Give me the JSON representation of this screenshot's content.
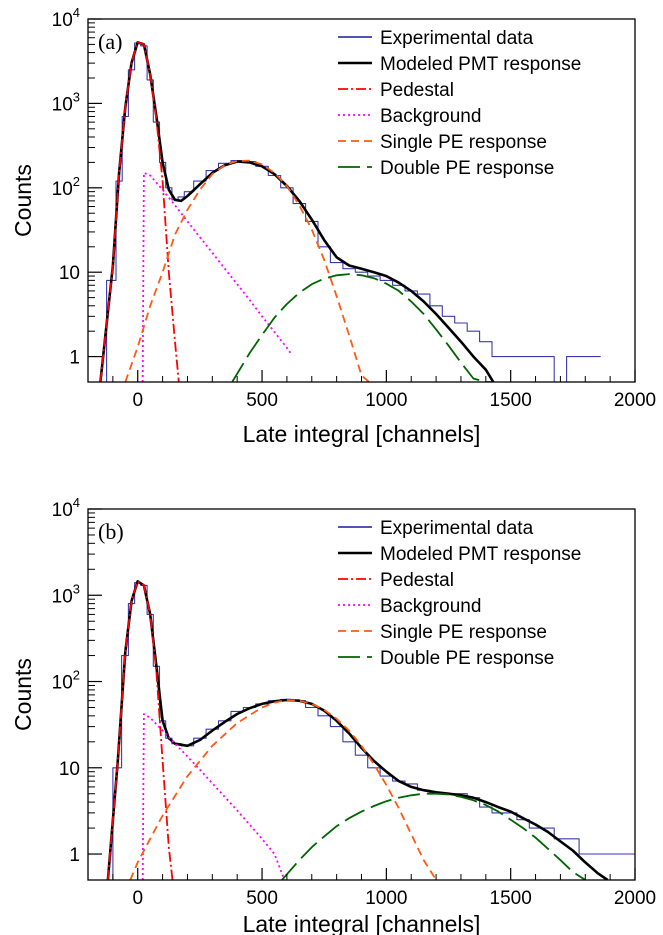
{
  "chart_data": [
    {
      "type": "line",
      "panel_label": "(a)",
      "xlabel": "Late integral [channels]",
      "ylabel": "Counts",
      "xlim": [
        -200,
        2000
      ],
      "ylim": [
        0.5,
        10000
      ],
      "yscale": "log",
      "grid": false,
      "legend_position": "top-right",
      "x_ticks": [
        0,
        500,
        1000,
        1500,
        2000
      ],
      "y_ticks": [
        {
          "value": 1,
          "label": "1"
        },
        {
          "value": 10,
          "label": "10"
        },
        {
          "value": 100,
          "label": "10",
          "exp": "2"
        },
        {
          "value": 1000,
          "label": "10",
          "exp": "3"
        },
        {
          "value": 10000,
          "label": "10",
          "exp": "4"
        }
      ],
      "series": [
        {
          "name": "Experimental data",
          "color": "#3a3ab0",
          "x": [
            -150,
            -100,
            -75,
            -50,
            -25,
            0,
            25,
            50,
            75,
            100,
            125,
            150,
            175,
            200,
            250,
            300,
            350,
            400,
            450,
            500,
            550,
            600,
            650,
            700,
            750,
            800,
            850,
            900,
            950,
            1000,
            1050,
            1100,
            1150,
            1200,
            1250,
            1300,
            1350,
            1400,
            1450,
            1500,
            1550,
            1600,
            1650,
            1700,
            1750,
            1800,
            1850
          ],
          "values": [
            0.5,
            8,
            120,
            700,
            2500,
            5200,
            4800,
            1900,
            600,
            200,
            100,
            72,
            78,
            90,
            120,
            160,
            195,
            210,
            205,
            180,
            140,
            100,
            65,
            40,
            20,
            13,
            11,
            10,
            9,
            8,
            7,
            6,
            5.5,
            4,
            3,
            2.5,
            2,
            1.5,
            1,
            1,
            1,
            1,
            1,
            0.5,
            1,
            1,
            1
          ]
        },
        {
          "name": "Modeled PMT response",
          "color": "#000000",
          "x": [
            -150,
            -100,
            -75,
            -50,
            -25,
            0,
            25,
            50,
            75,
            100,
            125,
            150,
            175,
            200,
            250,
            300,
            350,
            400,
            450,
            500,
            550,
            600,
            650,
            700,
            750,
            800,
            850,
            900,
            950,
            1000,
            1050,
            1100,
            1150,
            1200,
            1250,
            1300,
            1350,
            1400,
            1430
          ],
          "values": [
            0.5,
            12,
            150,
            900,
            3000,
            5300,
            5000,
            2200,
            700,
            200,
            95,
            72,
            70,
            80,
            110,
            150,
            185,
            205,
            200,
            180,
            145,
            105,
            70,
            42,
            24,
            15,
            12,
            11,
            10,
            9,
            7.5,
            6,
            4.5,
            3.2,
            2.2,
            1.5,
            1,
            0.7,
            0.5
          ]
        },
        {
          "name": "Pedestal",
          "color": "#ff0000",
          "dash": "10,3,2,3",
          "x": [
            -150,
            -100,
            -75,
            -50,
            -25,
            0,
            25,
            50,
            75,
            100,
            125,
            150,
            165
          ],
          "values": [
            0.5,
            12,
            150,
            900,
            3000,
            5300,
            5000,
            2200,
            650,
            120,
            10,
            1.5,
            0.5
          ]
        },
        {
          "name": "Background",
          "color": "#ff00ff",
          "dash": "2,3",
          "x": [
            20,
            25,
            50,
            100,
            150,
            200,
            250,
            300,
            350,
            400,
            450,
            500,
            550,
            600,
            615
          ],
          "values": [
            0.5,
            150,
            140,
            95,
            62,
            40,
            26,
            17,
            11,
            7.2,
            4.7,
            3.0,
            1.95,
            1.27,
            1.1
          ]
        },
        {
          "name": "Single PE response",
          "color": "#ff5a14",
          "dash": "8,5",
          "x": [
            -50,
            0,
            50,
            100,
            150,
            200,
            250,
            300,
            350,
            400,
            450,
            500,
            550,
            600,
            650,
            700,
            750,
            800,
            850,
            900,
            930
          ],
          "values": [
            0.5,
            1.3,
            4,
            10,
            28,
            55,
            95,
            145,
            185,
            208,
            210,
            190,
            150,
            105,
            62,
            32,
            14,
            5.2,
            1.8,
            0.6,
            0.5
          ]
        },
        {
          "name": "Double PE response",
          "color": "#006400",
          "dash": "22,7",
          "x": [
            380,
            450,
            500,
            550,
            600,
            650,
            700,
            750,
            800,
            850,
            900,
            950,
            1000,
            1050,
            1100,
            1150,
            1200,
            1250,
            1300,
            1350,
            1400,
            1420
          ],
          "values": [
            0.5,
            1.1,
            1.8,
            2.9,
            4.2,
            5.7,
            7.2,
            8.4,
            9.2,
            9.5,
            9.2,
            8.5,
            7.3,
            6.0,
            4.5,
            3.2,
            2.1,
            1.35,
            0.85,
            0.55,
            0.5,
            0.5
          ]
        }
      ]
    },
    {
      "type": "line",
      "panel_label": "(b)",
      "xlabel": "Late integral [channels]",
      "ylabel": "Counts",
      "xlim": [
        -200,
        2000
      ],
      "ylim": [
        0.5,
        10000
      ],
      "yscale": "log",
      "grid": false,
      "legend_position": "top-right",
      "x_ticks": [
        0,
        500,
        1000,
        1500,
        2000
      ],
      "y_ticks": [
        {
          "value": 1,
          "label": "1"
        },
        {
          "value": 10,
          "label": "10"
        },
        {
          "value": 100,
          "label": "10",
          "exp": "2"
        },
        {
          "value": 1000,
          "label": "10",
          "exp": "3"
        },
        {
          "value": 10000,
          "label": "10",
          "exp": "4"
        }
      ],
      "series": [
        {
          "name": "Experimental data",
          "color": "#3a3ab0",
          "x": [
            -120,
            -80,
            -50,
            -25,
            0,
            25,
            50,
            75,
            100,
            125,
            150,
            200,
            250,
            300,
            350,
            400,
            450,
            500,
            550,
            600,
            650,
            700,
            750,
            800,
            850,
            900,
            950,
            1000,
            1050,
            1100,
            1150,
            1200,
            1250,
            1300,
            1350,
            1400,
            1450,
            1500,
            1550,
            1600,
            1650,
            1700,
            1750,
            1800,
            1850,
            1900,
            1950,
            2000
          ],
          "values": [
            0.5,
            10,
            200,
            800,
            1400,
            1300,
            600,
            150,
            35,
            22,
            19,
            18,
            22,
            28,
            35,
            45,
            50,
            55,
            60,
            62,
            60,
            50,
            40,
            30,
            20,
            14,
            10,
            8,
            7,
            6.5,
            5.5,
            5,
            5,
            5,
            4.5,
            3.5,
            3,
            3,
            2.5,
            2,
            2,
            1.5,
            1.5,
            1,
            1,
            1,
            1,
            1
          ]
        },
        {
          "name": "Modeled PMT response",
          "color": "#000000",
          "x": [
            -120,
            -80,
            -50,
            -25,
            0,
            25,
            50,
            75,
            100,
            125,
            150,
            200,
            250,
            300,
            350,
            400,
            450,
            500,
            550,
            600,
            650,
            700,
            750,
            800,
            850,
            900,
            950,
            1000,
            1050,
            1100,
            1150,
            1200,
            1250,
            1300,
            1350,
            1400,
            1450,
            1500,
            1550,
            1600,
            1650,
            1700,
            1750,
            1800,
            1850,
            1890
          ],
          "values": [
            0.5,
            12,
            220,
            850,
            1450,
            1300,
            600,
            150,
            35,
            22,
            19,
            18,
            21,
            27,
            34,
            42,
            49,
            55,
            59,
            61,
            60,
            55,
            46,
            35,
            25,
            17,
            12,
            9,
            7,
            6,
            5.5,
            5.2,
            5,
            4.8,
            4.5,
            4,
            3.5,
            3.1,
            2.6,
            2.2,
            1.8,
            1.4,
            1.1,
            0.8,
            0.6,
            0.5
          ]
        },
        {
          "name": "Pedestal",
          "color": "#ff0000",
          "dash": "10,3,2,3",
          "x": [
            -120,
            -80,
            -50,
            -25,
            0,
            25,
            50,
            75,
            100,
            125,
            140
          ],
          "values": [
            0.5,
            12,
            220,
            850,
            1450,
            1300,
            600,
            130,
            12,
            1.2,
            0.5
          ]
        },
        {
          "name": "Background",
          "color": "#ff00ff",
          "dash": "2,3",
          "x": [
            20,
            25,
            50,
            100,
            150,
            200,
            250,
            300,
            350,
            400,
            450,
            500,
            550,
            590
          ],
          "values": [
            0.5,
            42,
            38,
            27,
            19,
            13.5,
            9.5,
            6.6,
            4.6,
            3.2,
            2.2,
            1.5,
            1.0,
            0.5
          ]
        },
        {
          "name": "Single PE response",
          "color": "#ff5a14",
          "dash": "8,5",
          "x": [
            -30,
            0,
            50,
            100,
            200,
            300,
            400,
            500,
            550,
            600,
            650,
            700,
            750,
            800,
            850,
            900,
            950,
            1000,
            1050,
            1100,
            1150,
            1200
          ],
          "values": [
            0.5,
            0.8,
            1.5,
            2.8,
            8,
            18,
            33,
            50,
            57,
            61,
            60,
            55,
            47,
            37,
            27,
            18,
            11,
            6.3,
            3.4,
            1.7,
            0.85,
            0.5
          ]
        },
        {
          "name": "Double PE response",
          "color": "#006400",
          "dash": "22,7",
          "x": [
            580,
            650,
            700,
            750,
            800,
            850,
            900,
            950,
            1000,
            1050,
            1100,
            1150,
            1200,
            1250,
            1300,
            1350,
            1400,
            1450,
            1500,
            1550,
            1600,
            1650,
            1700,
            1750,
            1800
          ],
          "values": [
            0.5,
            0.85,
            1.2,
            1.6,
            2.1,
            2.6,
            3.1,
            3.6,
            4.1,
            4.5,
            4.8,
            5.0,
            5.0,
            4.9,
            4.6,
            4.2,
            3.7,
            3.1,
            2.5,
            2.0,
            1.55,
            1.15,
            0.85,
            0.62,
            0.5
          ]
        }
      ]
    }
  ]
}
